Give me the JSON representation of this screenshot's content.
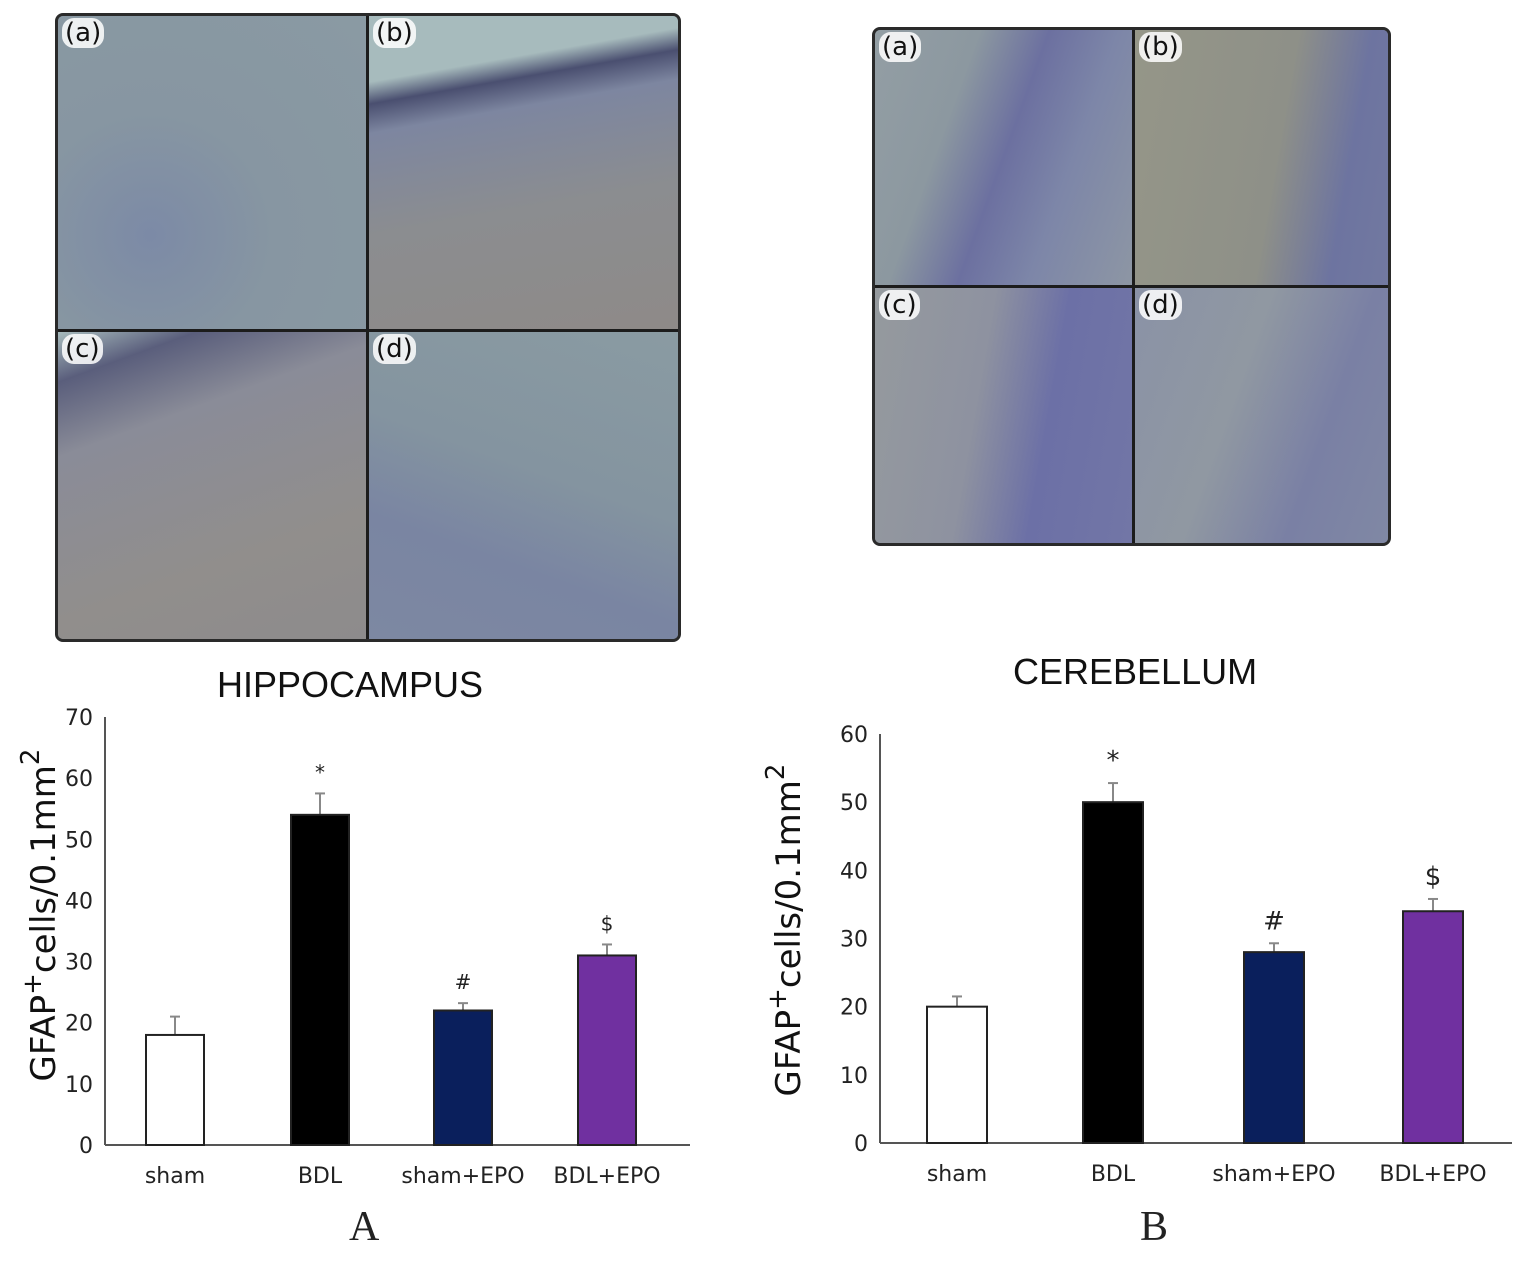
{
  "micrographs": [
    {
      "panel_labels": [
        "(a)",
        "(b)",
        "(c)",
        "(d)"
      ]
    },
    {
      "panel_labels": [
        "(a)",
        "(b)",
        "(c)",
        "(d)"
      ]
    }
  ],
  "chart_data": [
    {
      "type": "bar",
      "title": "HIPPOCAMPUS",
      "panel_label": "A",
      "ylabel": "GFAP+cells/0.1mm2",
      "ylabel_parts": {
        "base": "GFAP",
        "sup1": "+",
        "mid": "cells/0.1mm",
        "sup2": "2"
      },
      "ylim": [
        0,
        70
      ],
      "yticks": [
        "0",
        "10",
        "20",
        "30",
        "40",
        "50",
        "60",
        "70"
      ],
      "categories": [
        "sham",
        "BDL",
        "sham+EPO",
        "BDL+EPO"
      ],
      "values": [
        18,
        54,
        22,
        31
      ],
      "errors": [
        3,
        3.5,
        1.2,
        1.8
      ],
      "annotations": [
        "",
        "*",
        "#",
        "$"
      ],
      "colors": [
        "#ffffff",
        "#000000",
        "#0a1f5c",
        "#7030a0"
      ],
      "grid": false
    },
    {
      "type": "bar",
      "title": "CEREBELLUM",
      "panel_label": "B",
      "ylabel": "GFAP+cells/0.1mm2",
      "ylabel_parts": {
        "base": "GFAP",
        "sup1": "+",
        "mid": "cells/0.1mm",
        "sup2": "2"
      },
      "ylim": [
        0,
        60
      ],
      "yticks": [
        "0",
        "10",
        "20",
        "30",
        "40",
        "50",
        "60"
      ],
      "categories": [
        "sham",
        "BDL",
        "sham+EPO",
        "BDL+EPO"
      ],
      "values": [
        20,
        50,
        28,
        34
      ],
      "errors": [
        1.5,
        2.8,
        1.3,
        1.8
      ],
      "annotations": [
        "",
        "*",
        "#",
        "$"
      ],
      "colors": [
        "#ffffff",
        "#000000",
        "#0a1f5c",
        "#7030a0"
      ],
      "grid": false
    }
  ]
}
